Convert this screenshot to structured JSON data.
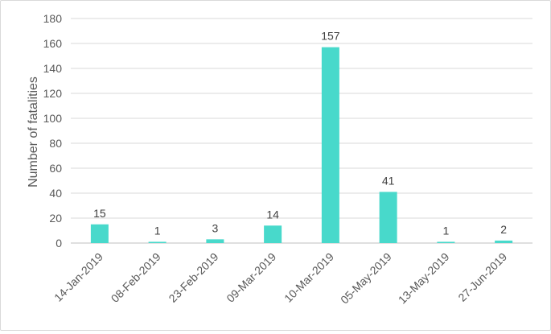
{
  "chart_data": {
    "type": "bar",
    "title": "",
    "xlabel": "",
    "ylabel": "Number of fatalities",
    "ylim": [
      0,
      180
    ],
    "yticks": [
      0,
      20,
      40,
      60,
      80,
      100,
      120,
      140,
      160,
      180
    ],
    "grid": true,
    "legend": "none",
    "bar_color": "#48d9cb",
    "categories": [
      "14-Jan-2019",
      "08-Feb-2019",
      "23-Feb-2019",
      "09-Mar-2019",
      "10-Mar-2019",
      "05-May-2019",
      "13-May-2019",
      "27-Jun-2019"
    ],
    "values": [
      15,
      1,
      3,
      14,
      157,
      41,
      1,
      2
    ]
  }
}
